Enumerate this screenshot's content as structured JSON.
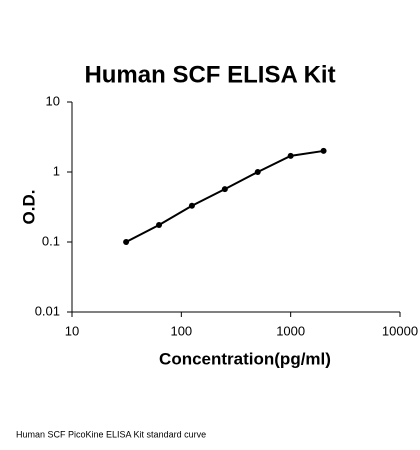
{
  "chart_data": {
    "type": "line",
    "title": "Human SCF ELISA Kit",
    "xlabel": "Concentration(pg/ml)",
    "ylabel": "O.D.",
    "caption": "Human SCF PicoKine ELISA Kit standard curve",
    "x": [
      31.25,
      62.5,
      125,
      250,
      500,
      1000,
      2000
    ],
    "series": [
      {
        "color": "#000000",
        "values": [
          0.1,
          0.175,
          0.33,
          0.57,
          1.0,
          1.7,
          2.0
        ]
      }
    ],
    "xlim": [
      10,
      10000
    ],
    "xticks": [
      10,
      100,
      1000,
      10000
    ],
    "ylim": [
      0.01,
      10
    ],
    "yticks": [
      0.01,
      0.1,
      1,
      10
    ],
    "xscale": "log",
    "yscale": "log",
    "grid": false
  }
}
